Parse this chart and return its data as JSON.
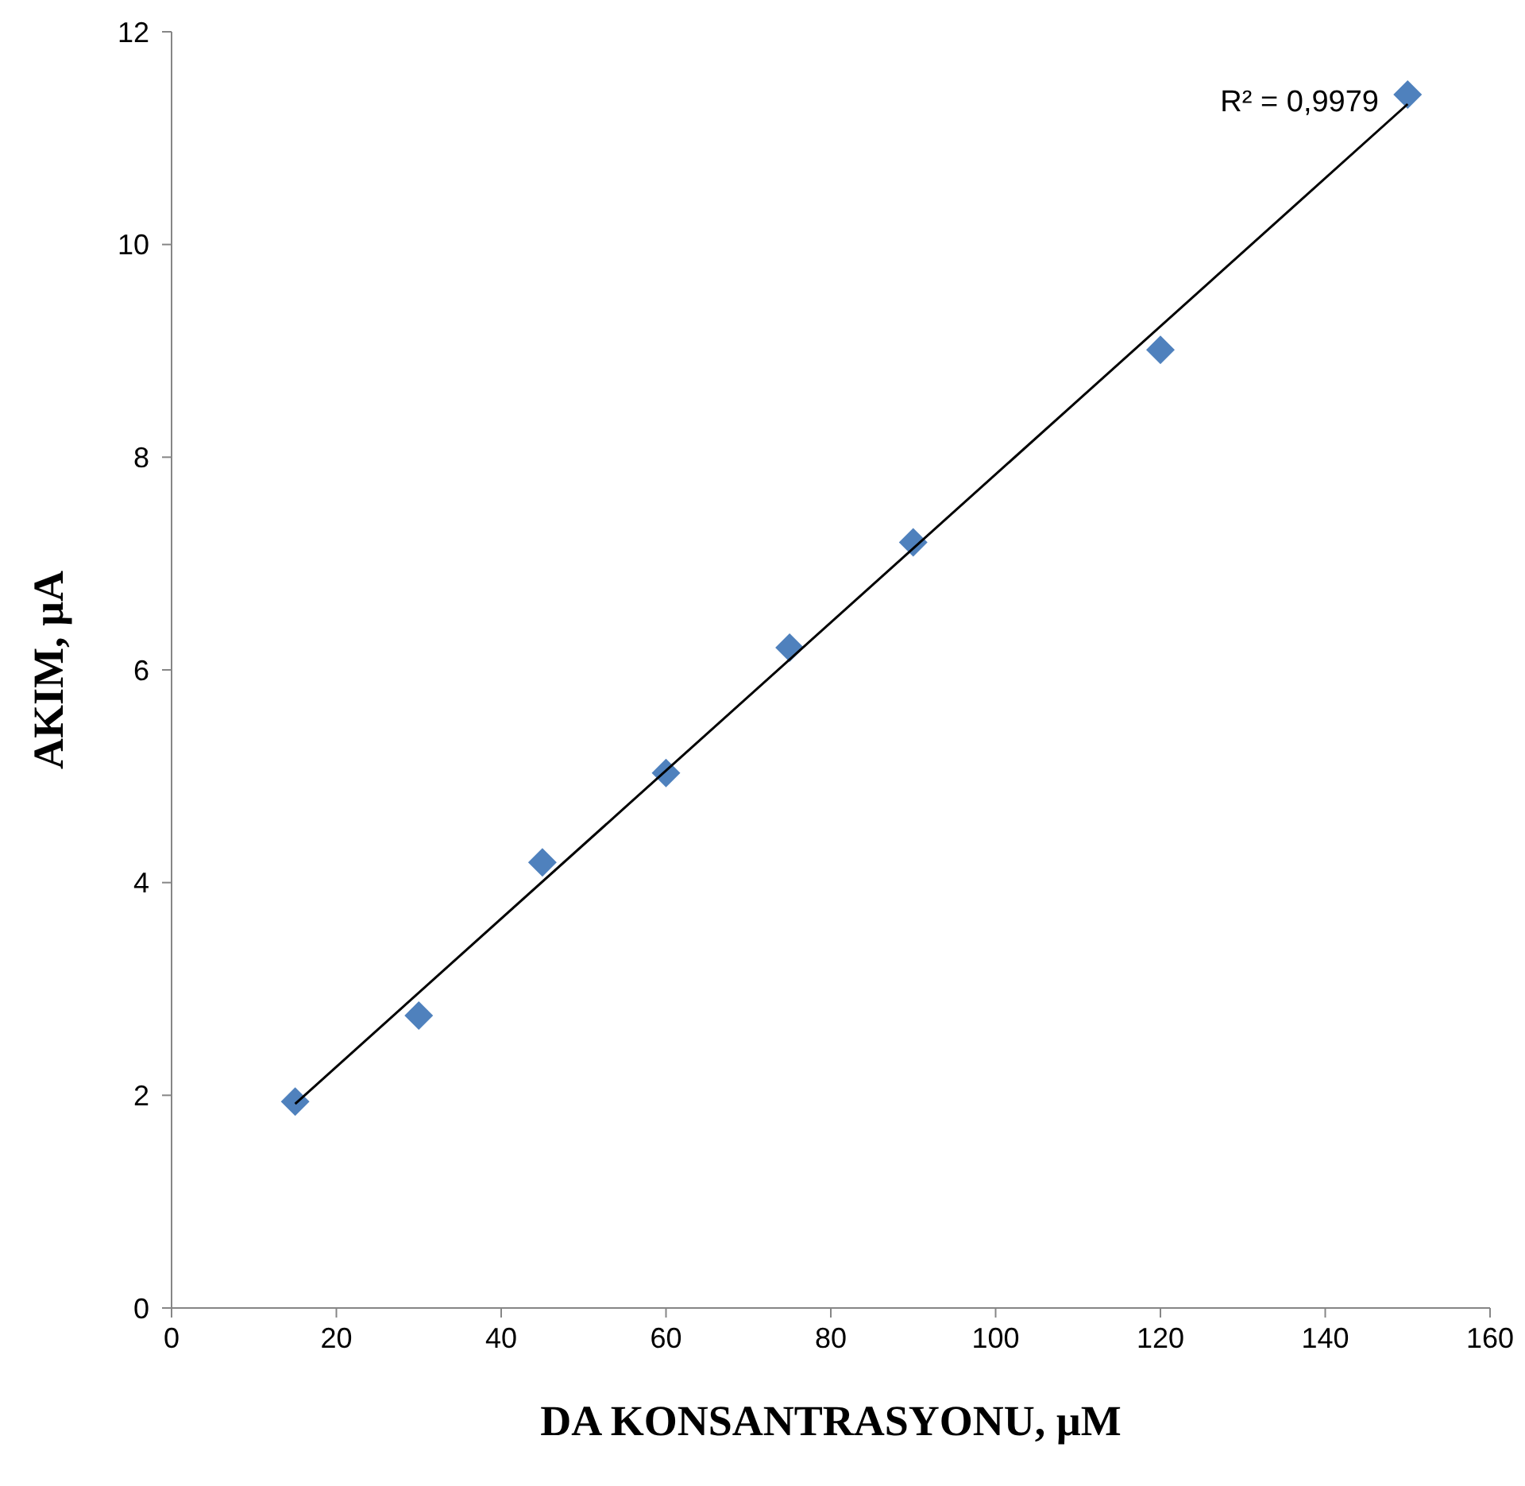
{
  "chart_data": {
    "type": "scatter",
    "xlabel": "DA KONSANTRASYONU, µM",
    "ylabel": "AKIM,  µA",
    "xlim": [
      0,
      160
    ],
    "xticks": [
      0,
      20,
      40,
      60,
      80,
      100,
      120,
      140,
      160
    ],
    "ylim": [
      0,
      12
    ],
    "yticks": [
      0,
      2,
      4,
      6,
      8,
      10,
      12
    ],
    "grid": false,
    "marker": "diamond",
    "series": [
      {
        "color": "#4f81bd",
        "x": [
          15,
          30,
          45,
          60,
          75,
          90,
          120,
          150
        ],
        "values": [
          1.94,
          2.75,
          4.19,
          5.03,
          6.21,
          7.2,
          9.01,
          11.41
        ]
      },
      {
        "type": "line",
        "color": "#000000",
        "marker": "none",
        "line_style": "solid",
        "x": [
          15,
          150
        ],
        "values": [
          1.92,
          11.32
        ]
      }
    ],
    "annotations": [
      "R² = 0,9979"
    ]
  }
}
